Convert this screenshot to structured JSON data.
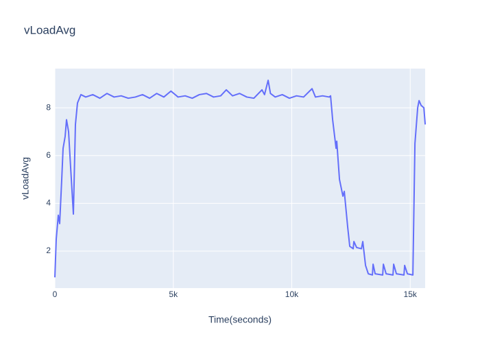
{
  "chart_data": {
    "type": "line",
    "title": "vLoadAvg",
    "x_label": "Time(seconds)",
    "y_label": "vLoadAvg",
    "color": "#636efa",
    "grid": true,
    "xlim": [
      0,
      15630
    ],
    "ylim": [
      0.45,
      9.64
    ],
    "xticks": [
      0,
      {
        "value": 5000,
        "label": "5k"
      },
      {
        "value": 10000,
        "label": "10k"
      },
      {
        "value": 15000,
        "label": "15k"
      }
    ],
    "yticks": [
      2,
      4,
      6,
      8
    ],
    "x": [
      0,
      58,
      145,
      203,
      290,
      347,
      434,
      492,
      579,
      666,
      782,
      868,
      955,
      1100,
      1303,
      1600,
      1900,
      2200,
      2500,
      2800,
      3100,
      3400,
      3700,
      4000,
      4300,
      4600,
      4900,
      5200,
      5500,
      5800,
      6100,
      6400,
      6700,
      7000,
      7237,
      7500,
      7800,
      8100,
      8400,
      8743,
      8850,
      9003,
      9100,
      9300,
      9600,
      9900,
      10200,
      10500,
      10856,
      11000,
      11300,
      11580,
      11638,
      11725,
      11870,
      11899,
      12014,
      12159,
      12217,
      12361,
      12448,
      12593,
      12622,
      12738,
      12940,
      12998,
      13114,
      13230,
      13404,
      13433,
      13520,
      13838,
      13867,
      13983,
      14272,
      14301,
      14417,
      14736,
      14765,
      14880,
      15112,
      15199,
      15315,
      15373,
      15460,
      15576,
      15633
    ],
    "values": [
      0.9,
      2.5,
      3.5,
      3.15,
      5.0,
      6.3,
      6.8,
      7.5,
      7.0,
      5.5,
      3.55,
      7.3,
      8.2,
      8.55,
      8.45,
      8.55,
      8.4,
      8.6,
      8.45,
      8.5,
      8.4,
      8.45,
      8.55,
      8.4,
      8.6,
      8.45,
      8.7,
      8.45,
      8.5,
      8.4,
      8.55,
      8.6,
      8.45,
      8.5,
      8.75,
      8.5,
      8.6,
      8.45,
      8.4,
      8.75,
      8.55,
      9.15,
      8.6,
      8.45,
      8.55,
      8.4,
      8.5,
      8.45,
      8.8,
      8.45,
      8.5,
      8.45,
      8.5,
      7.5,
      6.3,
      6.6,
      5.0,
      4.3,
      4.5,
      3.0,
      2.2,
      2.1,
      2.4,
      2.15,
      2.1,
      2.4,
      1.4,
      1.05,
      1.0,
      1.45,
      1.05,
      1.0,
      1.45,
      1.05,
      1.0,
      1.45,
      1.05,
      1.0,
      1.4,
      1.05,
      1.0,
      6.5,
      8.0,
      8.3,
      8.1,
      8.0,
      7.3
    ]
  }
}
